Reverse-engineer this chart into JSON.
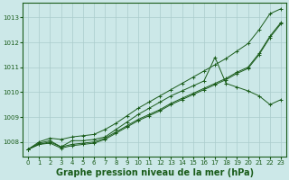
{
  "background_color": "#cce8e8",
  "grid_color": "#aacccc",
  "line_color": "#1a5c1a",
  "marker_color": "#1a5c1a",
  "xlabel": "Graphe pression niveau de la mer (hPa)",
  "xlabel_fontsize": 7,
  "xlim": [
    -0.5,
    23.5
  ],
  "ylim": [
    1007.4,
    1013.6
  ],
  "yticks": [
    1008,
    1009,
    1010,
    1011,
    1012,
    1013
  ],
  "xticks": [
    0,
    1,
    2,
    3,
    4,
    5,
    6,
    7,
    8,
    9,
    10,
    11,
    12,
    13,
    14,
    15,
    16,
    17,
    18,
    19,
    20,
    21,
    22,
    23
  ],
  "series": [
    [
      1007.7,
      1007.9,
      1008.0,
      1007.8,
      1008.05,
      1008.05,
      1008.1,
      1008.2,
      1008.5,
      1008.8,
      1009.1,
      1009.35,
      1009.6,
      1009.85,
      1010.05,
      1010.25,
      1010.45,
      1011.4,
      1010.35,
      1010.2,
      1010.05,
      1009.85,
      1009.5,
      1009.7
    ],
    [
      1007.7,
      1007.95,
      1008.05,
      1007.8,
      1007.9,
      1007.95,
      1008.0,
      1008.15,
      1008.4,
      1008.65,
      1008.9,
      1009.1,
      1009.3,
      1009.55,
      1009.75,
      1009.95,
      1010.15,
      1010.35,
      1010.55,
      1010.8,
      1011.0,
      1011.55,
      1012.25,
      1012.8
    ],
    [
      1007.7,
      1007.9,
      1007.95,
      1007.75,
      1007.85,
      1007.9,
      1007.95,
      1008.1,
      1008.35,
      1008.6,
      1008.85,
      1009.05,
      1009.25,
      1009.5,
      1009.7,
      1009.9,
      1010.1,
      1010.3,
      1010.5,
      1010.75,
      1010.95,
      1011.5,
      1012.2,
      1012.75
    ],
    [
      1007.7,
      1008.0,
      1008.15,
      1008.1,
      1008.2,
      1008.25,
      1008.3,
      1008.5,
      1008.75,
      1009.05,
      1009.35,
      1009.6,
      1009.85,
      1010.1,
      1010.35,
      1010.6,
      1010.85,
      1011.1,
      1011.35,
      1011.65,
      1011.95,
      1012.5,
      1013.15,
      1013.35
    ]
  ]
}
